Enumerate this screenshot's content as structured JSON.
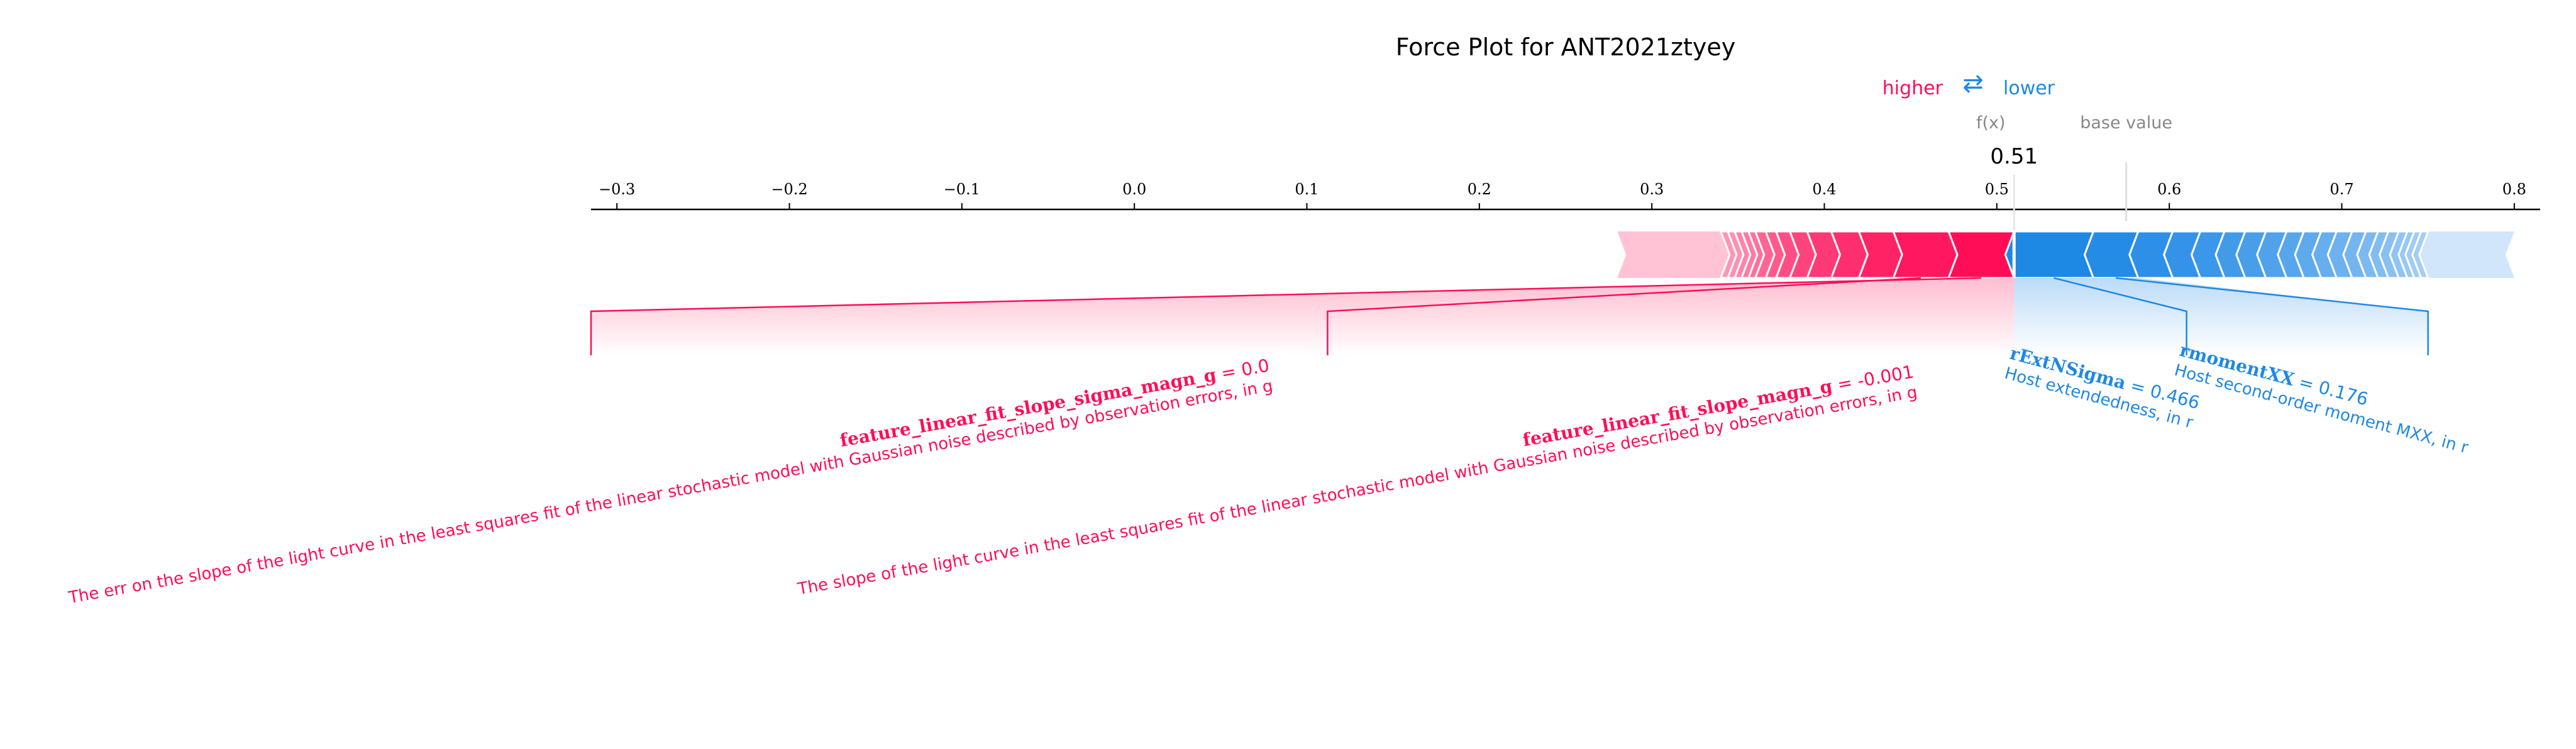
{
  "chart_data": {
    "type": "force",
    "title": "Force Plot for ANT2021ztyey",
    "legend": {
      "higher": "higher",
      "arrows": "⇄",
      "lower": "lower"
    },
    "colors": {
      "positive": "#ff0d57",
      "negative": "#1e88e5",
      "positive_light": "#ffc3d5",
      "negative_light": "#d1e6fa",
      "axis": "#000000",
      "muted": "#888888"
    },
    "fx_label": "f(x)",
    "base_value_label": "base value",
    "output_value": 0.51,
    "output_value_label": "0.51",
    "base_value": 0.575,
    "xlim": [
      -0.315,
      0.815
    ],
    "ticks": [
      -0.3,
      -0.2,
      -0.1,
      0.0,
      0.1,
      0.2,
      0.3,
      0.4,
      0.5,
      0.6,
      0.7,
      0.8
    ],
    "tick_labels": [
      "−0.3",
      "−0.2",
      "−0.1",
      "0.0",
      "0.1",
      "0.2",
      "0.3",
      "0.4",
      "0.5",
      "0.6",
      "0.7",
      "0.8"
    ],
    "positive_band": {
      "start": 0.28,
      "end": 0.51
    },
    "negative_band": {
      "start": 0.51,
      "end": 0.8
    },
    "positive_segment_bounds": [
      0.51,
      0.472,
      0.44,
      0.42,
      0.404,
      0.39,
      0.38,
      0.372,
      0.366,
      0.36,
      0.356,
      0.352,
      0.348,
      0.344,
      0.34
    ],
    "negative_segment_bounds": [
      0.51,
      0.556,
      0.582,
      0.602,
      0.618,
      0.632,
      0.644,
      0.656,
      0.668,
      0.678,
      0.688,
      0.697,
      0.706,
      0.714,
      0.721,
      0.727,
      0.733,
      0.738,
      0.742,
      0.746,
      0.75
    ],
    "features": [
      {
        "name": "feature_linear_fit_slope_sigma_magn_g",
        "value": "0.0",
        "description": "The err on the slope of the light curve in the least squares fit of the linear stochastic model with Gaussian noise described by observation errors, in g",
        "sign": "positive",
        "seg_start": 0.472,
        "seg_end": 0.51,
        "anchor": -0.315
      },
      {
        "name": "feature_linear_fit_slope_magn_g",
        "value": "-0.001",
        "description": "The slope of the light curve in the least squares fit of the linear stochastic model with Gaussian noise described by observation errors, in g",
        "sign": "positive",
        "seg_start": 0.44,
        "seg_end": 0.472,
        "anchor": 0.112
      },
      {
        "name": "rExtNSigma",
        "value": "0.466",
        "description": "Host extendedness, in r",
        "sign": "negative",
        "seg_start": 0.51,
        "seg_end": 0.556,
        "anchor": 0.61
      },
      {
        "name": "rmomentXX",
        "value": "0.176",
        "description": "Host second-order moment MXX, in r",
        "sign": "negative",
        "seg_start": 0.556,
        "seg_end": 0.582,
        "anchor": 0.75
      }
    ]
  }
}
